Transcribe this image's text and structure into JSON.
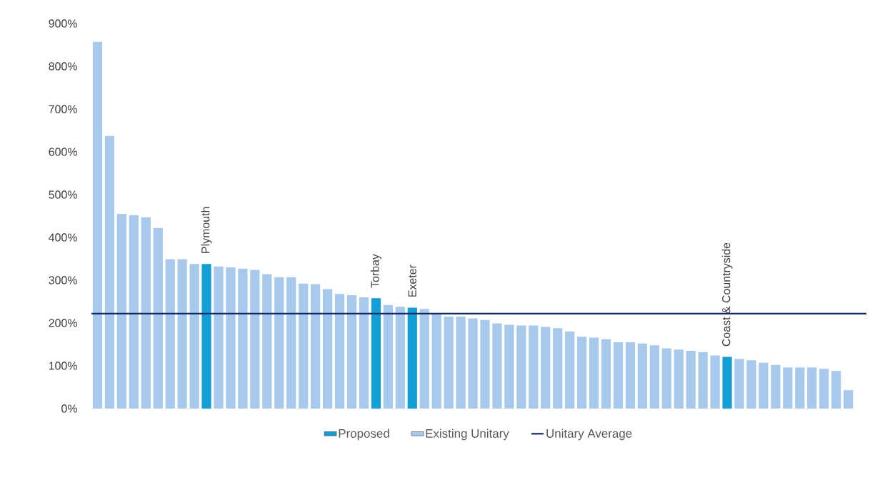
{
  "chart_data": {
    "type": "bar",
    "categories": [
      null,
      null,
      null,
      null,
      null,
      null,
      null,
      null,
      null,
      "Plymouth",
      null,
      null,
      null,
      null,
      null,
      null,
      null,
      null,
      null,
      null,
      null,
      null,
      null,
      "Torbay",
      null,
      null,
      "Exeter",
      null,
      null,
      null,
      null,
      null,
      null,
      null,
      null,
      null,
      null,
      null,
      null,
      null,
      null,
      null,
      null,
      null,
      null,
      null,
      null,
      null,
      null,
      null,
      null,
      null,
      "Coast & Countryside",
      null,
      null,
      null,
      null,
      null,
      null,
      null,
      null,
      null,
      null
    ],
    "series": [
      {
        "name": "Proposed",
        "color": "#129fd6",
        "values": [
          null,
          null,
          null,
          null,
          null,
          null,
          null,
          null,
          null,
          338,
          null,
          null,
          null,
          null,
          null,
          null,
          null,
          null,
          null,
          null,
          null,
          null,
          null,
          258,
          null,
          null,
          236,
          null,
          null,
          null,
          null,
          null,
          null,
          null,
          null,
          null,
          null,
          null,
          null,
          null,
          null,
          null,
          null,
          null,
          null,
          null,
          null,
          null,
          null,
          null,
          null,
          null,
          121,
          null,
          null,
          null,
          null,
          null,
          null,
          null,
          null,
          null,
          null
        ]
      },
      {
        "name": "Existing Unitary",
        "color": "#a7caec",
        "values": [
          857,
          637,
          455,
          452,
          447,
          422,
          349,
          349,
          338,
          null,
          332,
          330,
          327,
          324,
          314,
          307,
          307,
          292,
          291,
          279,
          268,
          265,
          260,
          null,
          242,
          238,
          null,
          233,
          222,
          215,
          215,
          211,
          207,
          199,
          196,
          194,
          194,
          191,
          188,
          180,
          168,
          166,
          162,
          155,
          155,
          152,
          148,
          141,
          138,
          135,
          132,
          124,
          null,
          116,
          113,
          107,
          102,
          96,
          96,
          96,
          93,
          88,
          43
        ]
      }
    ],
    "ylim": [
      0,
      900
    ],
    "yticks": [
      {
        "value": 0,
        "label": "0%"
      },
      {
        "value": 100,
        "label": "100%"
      },
      {
        "value": 200,
        "label": "200%"
      },
      {
        "value": 300,
        "label": "300%"
      },
      {
        "value": 400,
        "label": "400%"
      },
      {
        "value": 500,
        "label": "500%"
      },
      {
        "value": 600,
        "label": "600%"
      },
      {
        "value": 700,
        "label": "700%"
      },
      {
        "value": 800,
        "label": "800%"
      },
      {
        "value": 900,
        "label": "900%"
      }
    ],
    "ref_lines": [
      {
        "axis": "y",
        "value": 222,
        "label": "Unitary Average",
        "color": "#0e2a6b"
      }
    ],
    "stacked": true,
    "legend": "bottom"
  }
}
